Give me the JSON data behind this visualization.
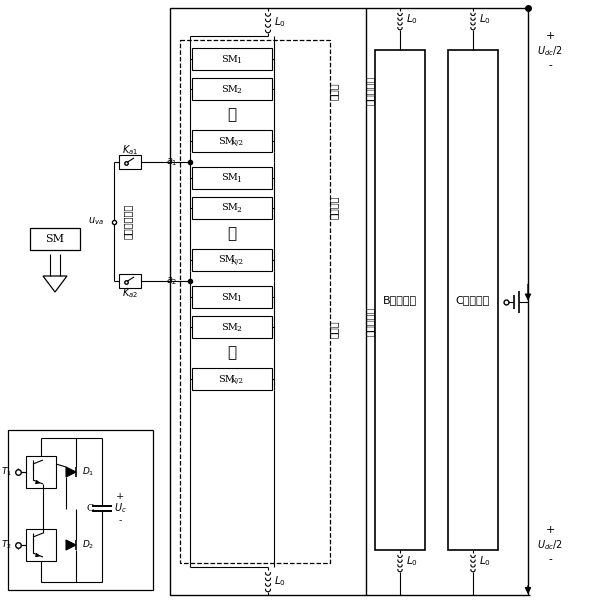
{
  "figsize": [
    5.98,
    6.07
  ],
  "dpi": 100,
  "background": "white",
  "labels_chinese": {
    "upper_arm": "上桥臂",
    "lower_arm": "下桥臂",
    "common_arm": "公共桥臂",
    "composite_upper": "复合上桥臂",
    "composite_lower": "复合下桥臂",
    "bridge_switch": "桥臂切换开关",
    "B_phase": "B相相单元",
    "C_phase": "C相相单元"
  }
}
